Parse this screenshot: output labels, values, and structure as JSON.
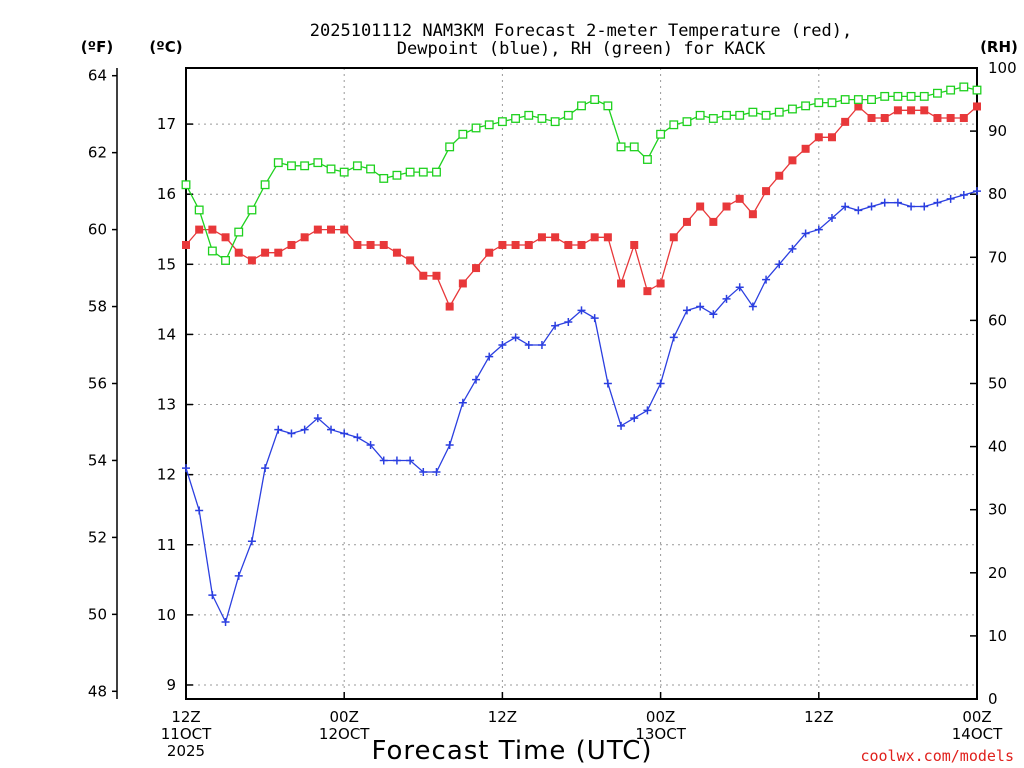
{
  "title_line1": "2025101112 NAM3KM Forecast 2-meter Temperature (red),",
  "title_line2": "Dewpoint (blue), RH (green) for KACK",
  "unit_f": "(ºF)",
  "unit_c": "(ºC)",
  "unit_rh": "(RH)",
  "credit": "coolwx.com/models",
  "colors": {
    "temp": "#e8383a",
    "dewpoint": "#2b3fe0",
    "rh": "#1fd11f"
  },
  "chart_data": {
    "type": "line",
    "title": "2025101112 NAM3KM Forecast 2-meter Temperature (red), Dewpoint (blue), RH (green) for KACK",
    "xlabel": "Forecast Time (UTC)",
    "x_range_hours": [
      0,
      60
    ],
    "x_ticks": [
      {
        "hour": 0,
        "line1": "12Z",
        "line2": "11OCT",
        "line3": "2025"
      },
      {
        "hour": 12,
        "line1": "00Z",
        "line2": "12OCT",
        "line3": ""
      },
      {
        "hour": 24,
        "line1": "12Z",
        "line2": "",
        "line3": ""
      },
      {
        "hour": 36,
        "line1": "00Z",
        "line2": "13OCT",
        "line3": ""
      },
      {
        "hour": 48,
        "line1": "12Z",
        "line2": "",
        "line3": ""
      },
      {
        "hour": 60,
        "line1": "00Z",
        "line2": "14OCT",
        "line3": ""
      }
    ],
    "y_left_f": {
      "label": "(ºF)",
      "ylim": [
        47.8,
        64.2
      ],
      "ticks": [
        48,
        50,
        52,
        54,
        56,
        58,
        60,
        62,
        64
      ]
    },
    "y_left_c": {
      "label": "(ºC)",
      "ylim": [
        8.8,
        17.8
      ],
      "ticks": [
        9,
        10,
        11,
        12,
        13,
        14,
        15,
        16,
        17
      ]
    },
    "y_right_rh": {
      "label": "(RH)",
      "ylim": [
        0,
        100
      ],
      "ticks": [
        0,
        10,
        20,
        30,
        40,
        50,
        60,
        70,
        80,
        90,
        100
      ]
    },
    "grid": true,
    "series": [
      {
        "name": "2-meter Temperature",
        "units": "F",
        "color": "#e8383a",
        "marker": "filled-square",
        "hours": [
          0,
          1,
          2,
          3,
          4,
          5,
          6,
          7,
          8,
          9,
          10,
          11,
          12,
          13,
          14,
          15,
          16,
          17,
          18,
          19,
          20,
          21,
          22,
          23,
          24,
          25,
          26,
          27,
          28,
          29,
          30,
          31,
          32,
          33,
          34,
          35,
          36,
          37,
          38,
          39,
          40,
          41,
          42,
          43,
          44,
          45,
          46,
          47,
          48,
          49,
          50,
          51,
          52,
          53,
          54,
          55,
          56,
          57,
          58,
          59,
          60
        ],
        "values": [
          59.6,
          60.0,
          60.0,
          59.8,
          59.4,
          59.2,
          59.4,
          59.4,
          59.6,
          59.8,
          60.0,
          60.0,
          60.0,
          59.6,
          59.6,
          59.6,
          59.4,
          59.2,
          58.8,
          58.8,
          58.0,
          58.6,
          59.0,
          59.4,
          59.6,
          59.6,
          59.6,
          59.8,
          59.8,
          59.6,
          59.6,
          59.8,
          59.8,
          58.6,
          59.6,
          58.4,
          58.6,
          59.8,
          60.2,
          60.6,
          60.2,
          60.6,
          60.8,
          60.4,
          61.0,
          61.4,
          61.8,
          62.1,
          62.4,
          62.4,
          62.8,
          63.2,
          62.9,
          62.9,
          63.1,
          63.1,
          63.1,
          62.9,
          62.9,
          62.9,
          63.2
        ]
      },
      {
        "name": "Dewpoint",
        "units": "F",
        "color": "#2b3fe0",
        "marker": "plus",
        "hours": [
          0,
          1,
          2,
          3,
          4,
          5,
          6,
          7,
          8,
          9,
          10,
          11,
          12,
          13,
          14,
          15,
          16,
          17,
          18,
          19,
          20,
          21,
          22,
          23,
          24,
          25,
          26,
          27,
          28,
          29,
          30,
          31,
          32,
          33,
          34,
          35,
          36,
          37,
          38,
          39,
          40,
          41,
          42,
          43,
          44,
          45,
          46,
          47,
          48,
          49,
          50,
          51,
          52,
          53,
          54,
          55,
          56,
          57,
          58,
          59,
          60
        ],
        "values": [
          53.8,
          52.7,
          50.5,
          49.8,
          51.0,
          51.9,
          53.8,
          54.8,
          54.7,
          54.8,
          55.1,
          54.8,
          54.7,
          54.6,
          54.4,
          54.0,
          54.0,
          54.0,
          53.7,
          53.7,
          54.4,
          55.5,
          56.1,
          56.7,
          57.0,
          57.2,
          57.0,
          57.0,
          57.5,
          57.6,
          57.9,
          57.7,
          56.0,
          54.9,
          55.1,
          55.3,
          56.0,
          57.2,
          57.9,
          58.0,
          57.8,
          58.2,
          58.5,
          58.0,
          58.7,
          59.1,
          59.5,
          59.9,
          60.0,
          60.3,
          60.6,
          60.5,
          60.6,
          60.7,
          60.7,
          60.6,
          60.6,
          60.7,
          60.8,
          60.9,
          61.0
        ]
      },
      {
        "name": "Relative Humidity",
        "units": "%",
        "color": "#1fd11f",
        "marker": "open-square",
        "hours": [
          0,
          1,
          2,
          3,
          4,
          5,
          6,
          7,
          8,
          9,
          10,
          11,
          12,
          13,
          14,
          15,
          16,
          17,
          18,
          19,
          20,
          21,
          22,
          23,
          24,
          25,
          26,
          27,
          28,
          29,
          30,
          31,
          32,
          33,
          34,
          35,
          36,
          37,
          38,
          39,
          40,
          41,
          42,
          43,
          44,
          45,
          46,
          47,
          48,
          49,
          50,
          51,
          52,
          53,
          54,
          55,
          56,
          57,
          58,
          59,
          60
        ],
        "values": [
          81.5,
          77.5,
          71.0,
          69.5,
          74.0,
          77.5,
          81.5,
          85.0,
          84.5,
          84.5,
          85.0,
          84.0,
          83.5,
          84.5,
          84.0,
          82.5,
          83.0,
          83.5,
          83.5,
          83.5,
          87.5,
          89.5,
          90.5,
          91.0,
          91.5,
          92.0,
          92.5,
          92.0,
          91.5,
          92.5,
          94.0,
          95.0,
          94.0,
          87.5,
          87.5,
          85.5,
          89.5,
          91.0,
          91.5,
          92.5,
          92.0,
          92.5,
          92.5,
          93.0,
          92.5,
          93.0,
          93.5,
          94.0,
          94.5,
          94.5,
          95.0,
          95.0,
          95.0,
          95.5,
          95.5,
          95.5,
          95.5,
          96.0,
          96.5,
          97.0,
          96.5
        ]
      }
    ]
  }
}
